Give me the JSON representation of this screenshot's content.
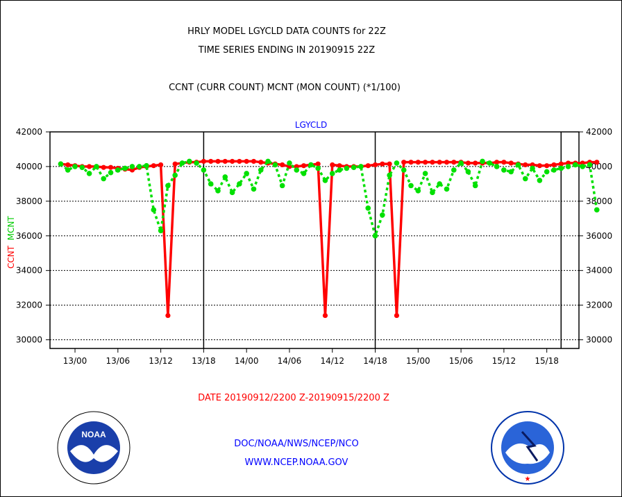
{
  "header": {
    "line1": "HRLY MODEL LGYCLD DATA COUNTS for 22Z",
    "line2": "TIME SERIES ENDING IN 20190915 22Z",
    "line3": "CCNT (CURR COUNT) MCNT (MON COUNT) (*1/100)"
  },
  "footer": {
    "date_range": "DATE 20190912/2200 Z-20190915/2200 Z",
    "org": "DOC/NOAA/NWS/NCEP/NCO",
    "url": "WWW.NCEP.NOAA.GOV"
  },
  "logos": {
    "noaa": "NOAA",
    "nws": "NATIONAL WEATHER SERVICE"
  },
  "colors": {
    "ccnt": "#ff0000",
    "mcnt": "#00e000",
    "title": "#0000ff"
  },
  "chart_data": {
    "type": "line",
    "title": "LGYCLD",
    "ylabel_ccnt": "CCNT",
    "ylabel_mcnt": "MCNT",
    "ylim": [
      29500,
      42000
    ],
    "yticks": [
      30000,
      32000,
      34000,
      36000,
      38000,
      40000,
      42000
    ],
    "xlim_hours": [
      -1.5,
      72.5
    ],
    "xticks": [
      {
        "label": "13/00",
        "hour": 2
      },
      {
        "label": "13/06",
        "hour": 8
      },
      {
        "label": "13/12",
        "hour": 14
      },
      {
        "label": "13/18",
        "hour": 20
      },
      {
        "label": "14/00",
        "hour": 26
      },
      {
        "label": "14/06",
        "hour": 32
      },
      {
        "label": "14/12",
        "hour": 38
      },
      {
        "label": "14/18",
        "hour": 44
      },
      {
        "label": "15/00",
        "hour": 50
      },
      {
        "label": "15/06",
        "hour": 56
      },
      {
        "label": "15/12",
        "hour": 62
      },
      {
        "label": "15/18",
        "hour": 68
      }
    ],
    "vlines_hours": [
      20,
      44,
      70
    ],
    "grid": true,
    "series": [
      {
        "name": "CCNT",
        "values": [
          40150,
          40100,
          40050,
          40000,
          40000,
          40000,
          39950,
          39950,
          39900,
          39850,
          39800,
          39950,
          40000,
          40050,
          40100,
          31400,
          40150,
          40200,
          40250,
          40250,
          40300,
          40300,
          40300,
          40300,
          40300,
          40300,
          40300,
          40300,
          40250,
          40200,
          40150,
          40100,
          40000,
          40000,
          40050,
          40100,
          40150,
          31400,
          40100,
          40050,
          40000,
          40000,
          40000,
          40050,
          40100,
          40150,
          40150,
          31400,
          40250,
          40250,
          40250,
          40250,
          40250,
          40250,
          40250,
          40250,
          40250,
          40200,
          40200,
          40200,
          40200,
          40250,
          40250,
          40200,
          40150,
          40100,
          40100,
          40050,
          40050,
          40100,
          40150,
          40200,
          40200,
          40200,
          40250,
          40250
        ]
      },
      {
        "name": "MCNT",
        "values": [
          40150,
          39800,
          40000,
          39950,
          39600,
          40000,
          39300,
          39650,
          39800,
          39900,
          40000,
          40000,
          40050,
          37500,
          36300,
          38900,
          39500,
          40200,
          40300,
          40200,
          39800,
          39000,
          38600,
          39400,
          38500,
          39000,
          39600,
          38700,
          39800,
          40300,
          40100,
          38900,
          40200,
          39800,
          39600,
          40100,
          39900,
          39200,
          39600,
          39800,
          39900,
          39950,
          40000,
          37600,
          36000,
          37200,
          39500,
          40200,
          39800,
          38900,
          38600,
          39600,
          38500,
          39000,
          38700,
          39800,
          40200,
          39700,
          38900,
          40300,
          40200,
          40000,
          39800,
          39700,
          40100,
          39300,
          39900,
          39200,
          39700,
          39800,
          39900,
          40000,
          40100,
          40000,
          40100,
          37500
        ]
      }
    ]
  }
}
